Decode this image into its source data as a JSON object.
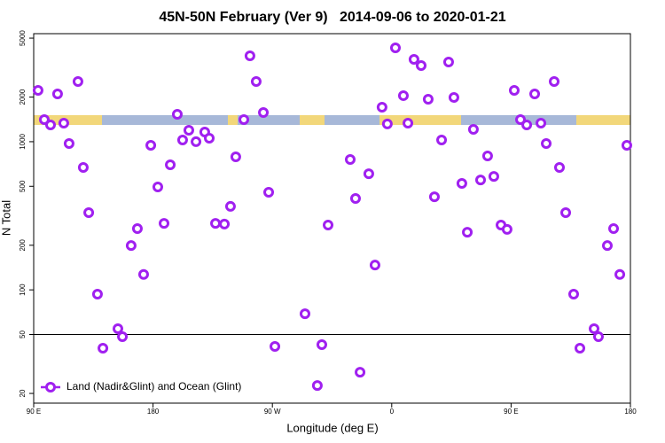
{
  "chart_data": {
    "type": "scatter",
    "title": "45N-50N February (Ver 9)   2014-09-06 to 2020-01-21",
    "x_label": "Longitude (deg E)",
    "y_label": "N Total",
    "xlim": [
      90,
      540
    ],
    "xticks": [
      {
        "value": 90,
        "label": "90 E"
      },
      180,
      {
        "value": 270,
        "label": "90 W"
      },
      {
        "value": 360,
        "label": "0"
      },
      {
        "value": 450,
        "label": "90 E"
      },
      {
        "value": 540,
        "label": "180"
      }
    ],
    "ylim": [
      17.2,
      5360
    ],
    "log_y": true,
    "yticks": [
      20,
      50,
      100,
      200,
      500,
      1000,
      2000,
      5000
    ],
    "hline": 50,
    "legend": "bottom-left",
    "series": [
      {
        "name": "Land (Nadir&Glint) and Ocean (Glint)",
        "color": "#a020f0",
        "x": [
          93.3,
          98,
          102.7,
          108,
          112.7,
          116.7,
          123.4,
          127.4,
          131.5,
          138.1,
          142.2,
          153.5,
          156.9,
          163.5,
          168.2,
          172.9,
          178.3,
          183.6,
          188.3,
          193,
          198.3,
          202.3,
          207,
          212.4,
          219,
          222.4,
          227.1,
          233.8,
          238.4,
          242.4,
          248.5,
          253.1,
          257.8,
          263.2,
          267.2,
          271.9,
          294.6,
          303.9,
          307.3,
          312,
          328.7,
          332.7,
          336.1,
          342.7,
          347.4,
          352.7,
          356.7,
          362.8,
          368.8,
          372.2,
          376.8,
          382.2,
          387.5,
          392.2,
          397.6,
          402.9,
          406.9,
          412.9,
          417,
          421.6,
          427,
          432.3,
          437,
          442.4,
          447,
          452.4,
          457.1,
          461.8,
          467.8,
          472.5,
          476.5,
          482.5,
          486.5,
          491.2,
          497.2,
          501.9,
          512.6,
          515.9,
          522.6,
          527.3,
          532,
          537.3
        ],
        "values": [
          2220,
          1410,
          1298,
          2100,
          1334,
          972,
          2548,
          670,
          332,
          93.5,
          40.4,
          54.7,
          48.3,
          199,
          259,
          127,
          945,
          495,
          281,
          698,
          1531,
          1027,
          1195,
          1000,
          1162,
          1055,
          281,
          278,
          366,
          790,
          1410,
          3800,
          2548,
          1573,
          456,
          41.5,
          69,
          22.6,
          42.7,
          274,
          759,
          414,
          27.8,
          608,
          147,
          1710,
          1318,
          4300,
          2046,
          1334,
          3597,
          3266,
          1935,
          425,
          1027,
          3451,
          1990,
          523,
          245,
          1211,
          552,
          801,
          583,
          274,
          256,
          2220,
          1410,
          1298,
          2100,
          1334,
          972,
          2548,
          670,
          332,
          93.5,
          40.4,
          54.7,
          48.3,
          199,
          259,
          127,
          945
        ]
      }
    ]
  }
}
